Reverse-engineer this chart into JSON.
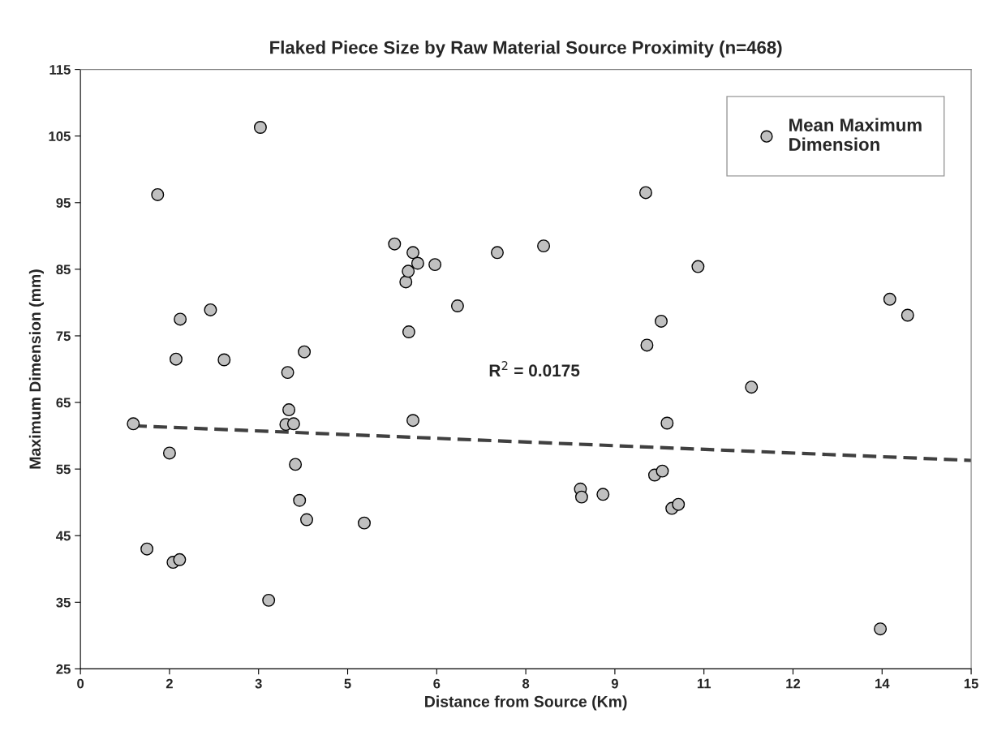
{
  "chart_data": {
    "type": "scatter",
    "title": "Flaked Piece Size by Raw Material Source Proximity (n=468)",
    "xlabel": "Distance from Source (Km)",
    "ylabel": "Maximum Dimension (mm)",
    "xlim": [
      0,
      15
    ],
    "xticks": [
      0,
      {
        "value": 1.5,
        "label": "2"
      },
      3,
      {
        "value": 4.5,
        "label": "5"
      },
      6,
      {
        "value": 7.5,
        "label": "8"
      },
      9,
      {
        "value": 10.5,
        "label": "11"
      },
      12,
      {
        "value": 13.5,
        "label": "14"
      },
      15
    ],
    "ylim": [
      25,
      115
    ],
    "yticks": [
      25,
      35,
      45,
      55,
      65,
      75,
      85,
      95,
      105,
      115
    ],
    "grid": false,
    "legend": "top right",
    "marker": "circle",
    "annotations": [
      "R$^{2}$ = 0.0175"
    ],
    "series": [
      {
        "name": "Mean Maximum Dimension",
        "color": "#c0c0c0",
        "x": [
          0.89,
          1.12,
          1.3,
          1.5,
          1.56,
          1.61,
          1.67,
          1.68,
          2.19,
          2.42,
          3.03,
          3.17,
          3.46,
          3.49,
          3.51,
          3.59,
          3.62,
          3.69,
          3.77,
          3.81,
          4.78,
          5.29,
          5.48,
          5.52,
          5.53,
          5.6,
          5.6,
          5.68,
          5.97,
          6.35,
          7.02,
          7.8,
          8.42,
          8.44,
          8.8,
          9.52,
          9.54,
          9.67,
          9.78,
          9.8,
          9.88,
          9.96,
          10.07,
          10.4,
          11.3,
          13.47,
          13.63,
          13.93
        ],
        "values": [
          61.8,
          43.0,
          96.2,
          57.4,
          41.0,
          71.5,
          41.4,
          77.5,
          78.9,
          71.4,
          106.3,
          35.3,
          61.7,
          69.5,
          63.9,
          61.8,
          55.7,
          50.3,
          72.6,
          47.4,
          46.9,
          88.8,
          83.1,
          84.7,
          75.6,
          87.5,
          62.3,
          85.9,
          85.7,
          79.5,
          87.5,
          88.5,
          52.0,
          50.8,
          51.2,
          96.5,
          73.6,
          54.1,
          77.2,
          54.7,
          61.9,
          49.1,
          49.7,
          85.4,
          67.3,
          31.0,
          80.5,
          78.1
        ]
      },
      {
        "type": "line",
        "color": "#404040",
        "line_style": "dashed",
        "marker": "none",
        "x": [
          0.89,
          15
        ],
        "values": [
          61.5,
          56.3
        ]
      }
    ]
  }
}
